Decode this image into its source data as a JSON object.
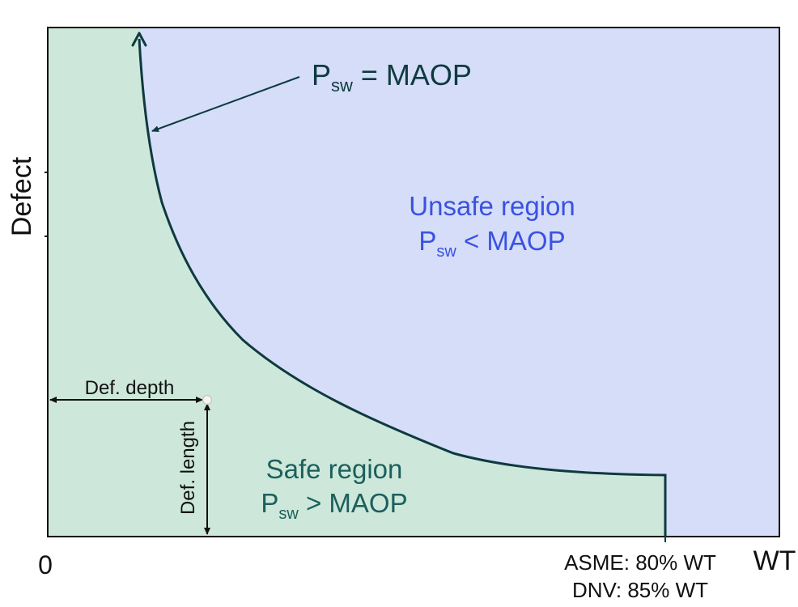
{
  "colors": {
    "safe_fill": "#cde8da",
    "unsafe_fill": "#d5ddf8",
    "curve": "#0e3a3f",
    "unsafe_text": "#3a52e0",
    "safe_text": "#1c5f5c"
  },
  "curve_label": {
    "p": "P",
    "sub": "sw",
    "rest": " = MAOP"
  },
  "unsafe_region": {
    "title": "Unsafe region",
    "p": "P",
    "sub": "sw",
    "rest": " < MAOP"
  },
  "safe_region": {
    "title": "Safe region",
    "p": "P",
    "sub": "sw",
    "rest": " > MAOP"
  },
  "axes": {
    "y_label": "Defect",
    "x_label": "WT",
    "origin": "0",
    "limit_asme": "ASME: 80% WT",
    "limit_dnv": "DNV: 85% WT"
  },
  "dimensions": {
    "depth": "Def. depth",
    "length": "Def. length"
  }
}
